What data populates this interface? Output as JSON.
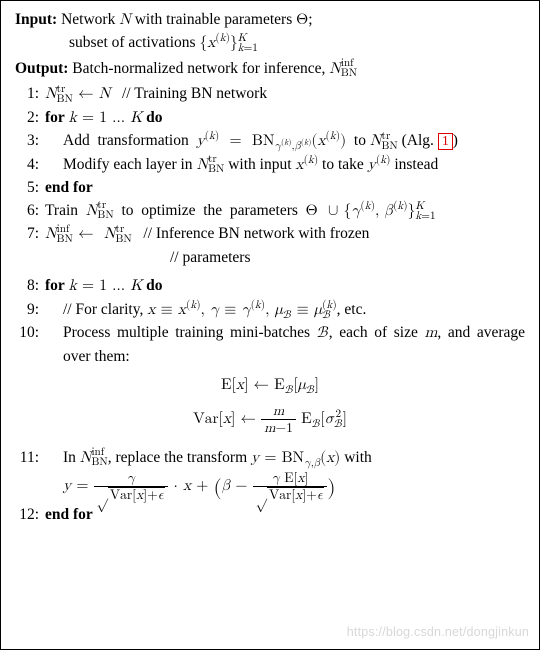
{
  "input_label": "Input:",
  "input_text_1": "Network <span class=\"math\"><i>N</i></span> with trainable parameters <span class=\"math\">Θ</span>;",
  "input_text_2": "subset of activations <span class=\"math\">{<i>x</i><sup>(<i>k</i>)</sup>}<span style=\"display:inline-block;vertical-align:-0.35em;font-size:0.72em;line-height:0.9;\"><span style=\"display:block;\"><i>K</i></span><span style=\"display:block;\"><i>k</i>=1</span></span></span>",
  "output_label": "Output:",
  "output_text": "Batch-normalized network for inference, <span class=\"math\"><i>N</i><span style=\"display:inline-block;vertical-align:-0.3em;font-size:0.72em;line-height:0.9;\"><span style=\"display:block;\">inf</span><span style=\"display:block;\">BN</span></span></span>",
  "ln1": "1:",
  "s1": "<span class=\"math\"><i>N</i><span style=\"display:inline-block;vertical-align:-0.3em;font-size:0.72em;line-height:0.9;\"><span style=\"display:block;\">tr</span><span style=\"display:block;\">BN</span></span> ← <i>N</i></span>&nbsp;&nbsp;&nbsp;// Training BN network",
  "ln2": "2:",
  "s2": "<b>for</b> <span class=\"math\"><i>k</i> = 1 … <i>K</i></span> <b>do</b>",
  "ln3": "3:",
  "s3": "Add&nbsp;&nbsp;transformation&nbsp;&nbsp;<span class=\"math\"><i>y</i><sup>(<i>k</i>)</sup>&nbsp; =&nbsp; BN<sub><i>γ</i><sup>(<i>k</i>)</sup>,<i>β</i><sup>(<i>k</i>)</sup></sub>(<i>x</i><sup>(<i>k</i>)</sup>)</span>&nbsp;&nbsp;to <span class=\"math\"><i>N</i><span style=\"display:inline-block;vertical-align:-0.3em;font-size:0.72em;line-height:0.9;\"><span style=\"display:block;\">tr</span><span style=\"display:block;\">BN</span></span></span> (Alg. <span class=\"ref\" data-name=\"alg-ref-1\" data-interactable=\"false\">1</span>)",
  "ln4": "4:",
  "s4": "Modify each layer in <span class=\"math\"><i>N</i><span style=\"display:inline-block;vertical-align:-0.3em;font-size:0.72em;line-height:0.9;\"><span style=\"display:block;\">tr</span><span style=\"display:block;\">BN</span></span></span> with input <span class=\"math\"><i>x</i><sup>(<i>k</i>)</sup></span> to take <span class=\"math\"><i>y</i><sup>(<i>k</i>)</sup></span> instead",
  "ln5": "5:",
  "s5": "<b>end for</b>",
  "ln6": "6:",
  "s6": "Train&nbsp;&nbsp;<span class=\"math\"><i>N</i><span style=\"display:inline-block;vertical-align:-0.3em;font-size:0.72em;line-height:0.9;\"><span style=\"display:block;\">tr</span><span style=\"display:block;\">BN</span></span></span>&nbsp;&nbsp;to&nbsp;&nbsp;optimize&nbsp;&nbsp;the&nbsp;&nbsp;parameters&nbsp;&nbsp;<span class=\"math\">Θ&nbsp; ∪ {<i>γ</i><sup>(<i>k</i>)</sup>, <i>β</i><sup>(<i>k</i>)</sup>}<span style=\"display:inline-block;vertical-align:-0.35em;font-size:0.72em;line-height:0.9;\"><span style=\"display:block;\"><i>K</i></span><span style=\"display:block;\"><i>k</i>=1</span></span></span>",
  "ln7": "7:",
  "s7": "<span class=\"math\"><i>N</i><span style=\"display:inline-block;vertical-align:-0.3em;font-size:0.72em;line-height:0.9;\"><span style=\"display:block;\">inf</span><span style=\"display:block;\">BN</span></span> ←&nbsp; <i>N</i><span style=\"display:inline-block;vertical-align:-0.3em;font-size:0.72em;line-height:0.9;\"><span style=\"display:block;\">tr</span><span style=\"display:block;\">BN</span></span></span>&nbsp;&nbsp;&nbsp;// Inference BN network with frozen<br><span style=\"display:inline-block;width:125px;\"></span>// parameters",
  "ln8": "8:",
  "s8": "<b>for</b> <span class=\"math\"><i>k</i> = 1 … <i>K</i></span> <b>do</b>",
  "ln9": "9:",
  "s9": "// For clarity, <span class=\"math\"><i>x</i> ≡ <i>x</i><sup>(<i>k</i>)</sup>, <i>γ</i> ≡ <i>γ</i><sup>(<i>k</i>)</sup>, <i>μ</i><sub>ℬ</sub> ≡ <i>μ</i><span style=\"display:inline-block;vertical-align:-0.4em;font-size:0.72em;line-height:0.9;\"><span style=\"display:block;\">(<i>k</i>)</span><span style=\"display:block;\">ℬ</span></span></span>, etc.",
  "ln10": "10:",
  "s10": "Process multiple training mini-batches <span class=\"math\">ℬ</span>, each of size <span class=\"math\"><i>m</i></span>, and average over them:",
  "eq1": "<span class=\"math\">E[<i>x</i>] ← E<sub>ℬ</sub>[<i>μ</i><sub>ℬ</sub>]</span>",
  "eq2": "<span class=\"math\">Var[<i>x</i>] ← <span class=\"frac\"><span class=\"num\"><i>m</i></span><span class=\"den\"><i>m</i>−1</span></span> E<sub>ℬ</sub>[<i>σ</i><span style=\"display:inline-block;vertical-align:-0.35em;font-size:0.72em;line-height:0.9;\"><span style=\"display:block;\">2</span><span style=\"display:block;\">ℬ</span></span>]</span>",
  "ln11": "11:",
  "s11": "In <span class=\"math\"><i>N</i><span style=\"display:inline-block;vertical-align:-0.3em;font-size:0.72em;line-height:0.9;\"><span style=\"display:block;\">inf</span><span style=\"display:block;\">BN</span></span></span>, replace the transform <span class=\"math\"><i>y</i> = BN<sub><i>γ</i>,<i>β</i></sub>(<i>x</i>)</span> with",
  "eq3": "<span class=\"math\"><i>y</i> = <span class=\"frac\"><span class=\"num\"><i>γ</i></span><span class=\"den\">√<span style=\"border-top:1px solid #000;padding:0 2px;\">Var[<i>x</i>]+<i>ϵ</i></span></span></span> · <i>x</i> + <span class=\"bigp\">(</span><i>β</i> − <span class=\"frac\"><span class=\"num\"><i>γ</i> E[<i>x</i>]</span><span class=\"den\">√<span style=\"border-top:1px solid #000;padding:0 2px;\">Var[<i>x</i>]+<i>ϵ</i></span></span></span><span class=\"bigp\">)</span></span>",
  "ln12": "12:",
  "s12": "<b>end for</b>",
  "watermark": "https://blog.csdn.net/dongjinkun"
}
